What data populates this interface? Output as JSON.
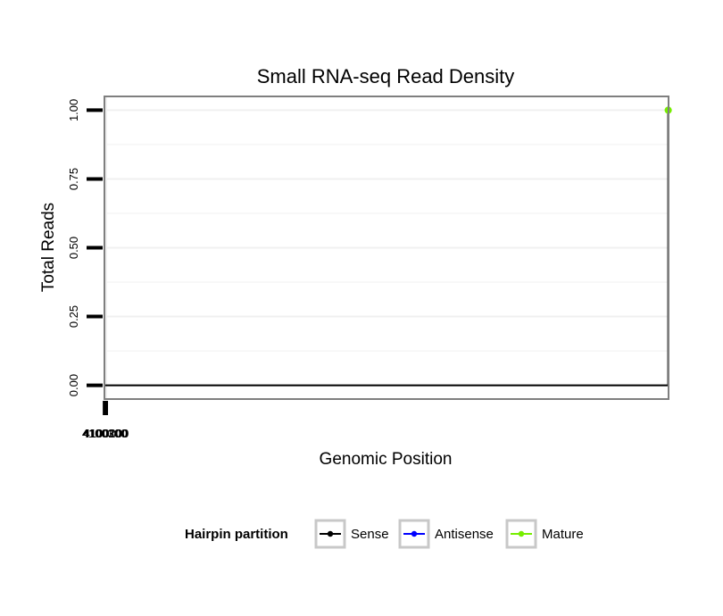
{
  "chart_data": {
    "type": "line",
    "title": "Small RNA-seq Read Density",
    "xlabel": "Genomic Position",
    "ylabel": "Total Reads",
    "x_reversed": true,
    "xlim": [
      4100320,
      3999920
    ],
    "ylim": [
      -0.05,
      1.05
    ],
    "x_ticks": [
      4100300,
      4100200,
      4100100,
      4100000
    ],
    "y_ticks": [
      0,
      0.25,
      0.5,
      0.75,
      1
    ],
    "y_tick_labels": [
      "0.00",
      "0.25",
      "0.50",
      "0.75",
      "1.00"
    ],
    "grid": true,
    "legend_position": "bottom",
    "legend_title": "Hairpin partition",
    "series": [
      {
        "name": "Sense",
        "color": "#000000",
        "points": [
          [
            4100300,
            0
          ],
          [
            3999990,
            0
          ],
          [
            3999990,
            1
          ],
          [
            3999970,
            1
          ],
          [
            3999970,
            0
          ],
          [
            3999949,
            0
          ],
          [
            3999949,
            1
          ],
          [
            3999929,
            1
          ],
          [
            3999929,
            0
          ],
          [
            3999920,
            0
          ]
        ]
      },
      {
        "name": "Antisense",
        "color": "#0000ff",
        "points": [
          [
            3999990,
            0
          ],
          [
            3999970,
            0
          ],
          [
            3999949,
            0
          ],
          [
            3999929,
            0
          ]
        ]
      },
      {
        "name": "Mature",
        "color": "#76ee00",
        "points": [
          [
            3999990,
            1
          ],
          [
            3999970,
            1
          ]
        ]
      }
    ]
  }
}
